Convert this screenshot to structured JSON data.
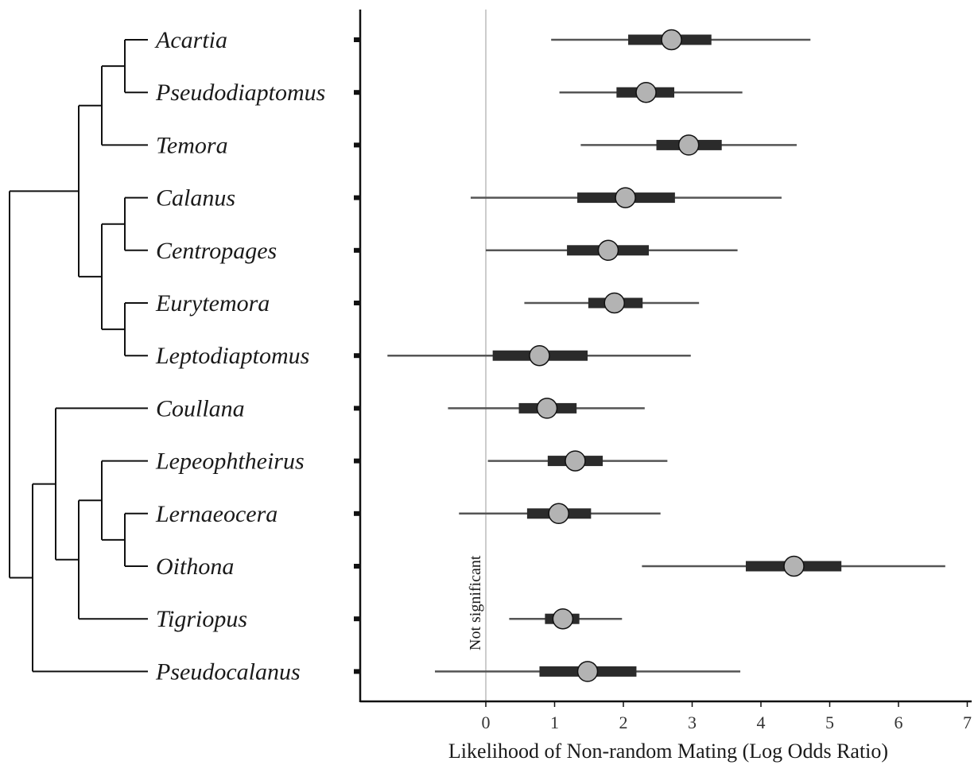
{
  "chart_data": {
    "type": "forest",
    "xlabel": "Likelihood of Non-random Mating (Log Odds Ratio)",
    "xlim": [
      -1.83,
      7
    ],
    "xticks": [
      0,
      1,
      2,
      3,
      4,
      5,
      6,
      7
    ],
    "reference_line": {
      "x": 0,
      "label": "Not significant"
    },
    "rows": [
      {
        "taxon": "Acartia",
        "estimate": 2.7,
        "inner": [
          2.07,
          3.28
        ],
        "outer": [
          0.95,
          4.72
        ]
      },
      {
        "taxon": "Pseudodiaptomus",
        "estimate": 2.33,
        "inner": [
          1.9,
          2.74
        ],
        "outer": [
          1.07,
          3.73
        ]
      },
      {
        "taxon": "Temora",
        "estimate": 2.95,
        "inner": [
          2.48,
          3.43
        ],
        "outer": [
          1.38,
          4.52
        ]
      },
      {
        "taxon": "Calanus",
        "estimate": 2.03,
        "inner": [
          1.33,
          2.75
        ],
        "outer": [
          -0.22,
          4.3
        ]
      },
      {
        "taxon": "Centropages",
        "estimate": 1.78,
        "inner": [
          1.18,
          2.37
        ],
        "outer": [
          0.0,
          3.66
        ]
      },
      {
        "taxon": "Eurytemora",
        "estimate": 1.87,
        "inner": [
          1.49,
          2.28
        ],
        "outer": [
          0.56,
          3.1
        ]
      },
      {
        "taxon": "Leptodiaptomus",
        "estimate": 0.78,
        "inner": [
          0.1,
          1.48
        ],
        "outer": [
          -1.43,
          2.98
        ]
      },
      {
        "taxon": "Coullana",
        "estimate": 0.89,
        "inner": [
          0.48,
          1.32
        ],
        "outer": [
          -0.55,
          2.31
        ]
      },
      {
        "taxon": "Lepeophtheirus",
        "estimate": 1.3,
        "inner": [
          0.9,
          1.7
        ],
        "outer": [
          0.03,
          2.64
        ]
      },
      {
        "taxon": "Lernaeocera",
        "estimate": 1.06,
        "inner": [
          0.6,
          1.53
        ],
        "outer": [
          -0.39,
          2.54
        ]
      },
      {
        "taxon": "Oithona",
        "estimate": 4.48,
        "inner": [
          3.78,
          5.17
        ],
        "outer": [
          2.27,
          6.68
        ]
      },
      {
        "taxon": "Tigriopus",
        "estimate": 1.12,
        "inner": [
          0.86,
          1.36
        ],
        "outer": [
          0.34,
          1.98
        ]
      },
      {
        "taxon": "Pseudocalanus",
        "estimate": 1.48,
        "inner": [
          0.78,
          2.19
        ],
        "outer": [
          -0.74,
          3.7
        ]
      }
    ],
    "tree": {
      "children": [
        {
          "children": [
            {
              "children": [
                {
                  "children": [
                    {
                      "leaf": 0
                    },
                    {
                      "leaf": 1
                    }
                  ]
                },
                {
                  "leaf": 2
                }
              ]
            },
            {
              "children": [
                {
                  "children": [
                    {
                      "leaf": 3
                    },
                    {
                      "leaf": 4
                    }
                  ]
                },
                {
                  "children": [
                    {
                      "leaf": 5
                    },
                    {
                      "leaf": 6
                    }
                  ]
                }
              ]
            }
          ]
        },
        {
          "children": [
            {
              "children": [
                {
                  "leaf": 7
                },
                {
                  "children": [
                    {
                      "children": [
                        {
                          "leaf": 8
                        },
                        {
                          "children": [
                            {
                              "leaf": 9
                            },
                            {
                              "leaf": 10
                            }
                          ]
                        }
                      ]
                    },
                    {
                      "leaf": 11
                    }
                  ]
                }
              ]
            },
            {
              "leaf": 12
            }
          ]
        }
      ]
    },
    "colors": {
      "point_fill": "#b3b3b3",
      "inner_interval": "#2b2b2b",
      "outer_interval": "#555555",
      "reference_line": "#cccccc",
      "tree": "#111111"
    }
  }
}
